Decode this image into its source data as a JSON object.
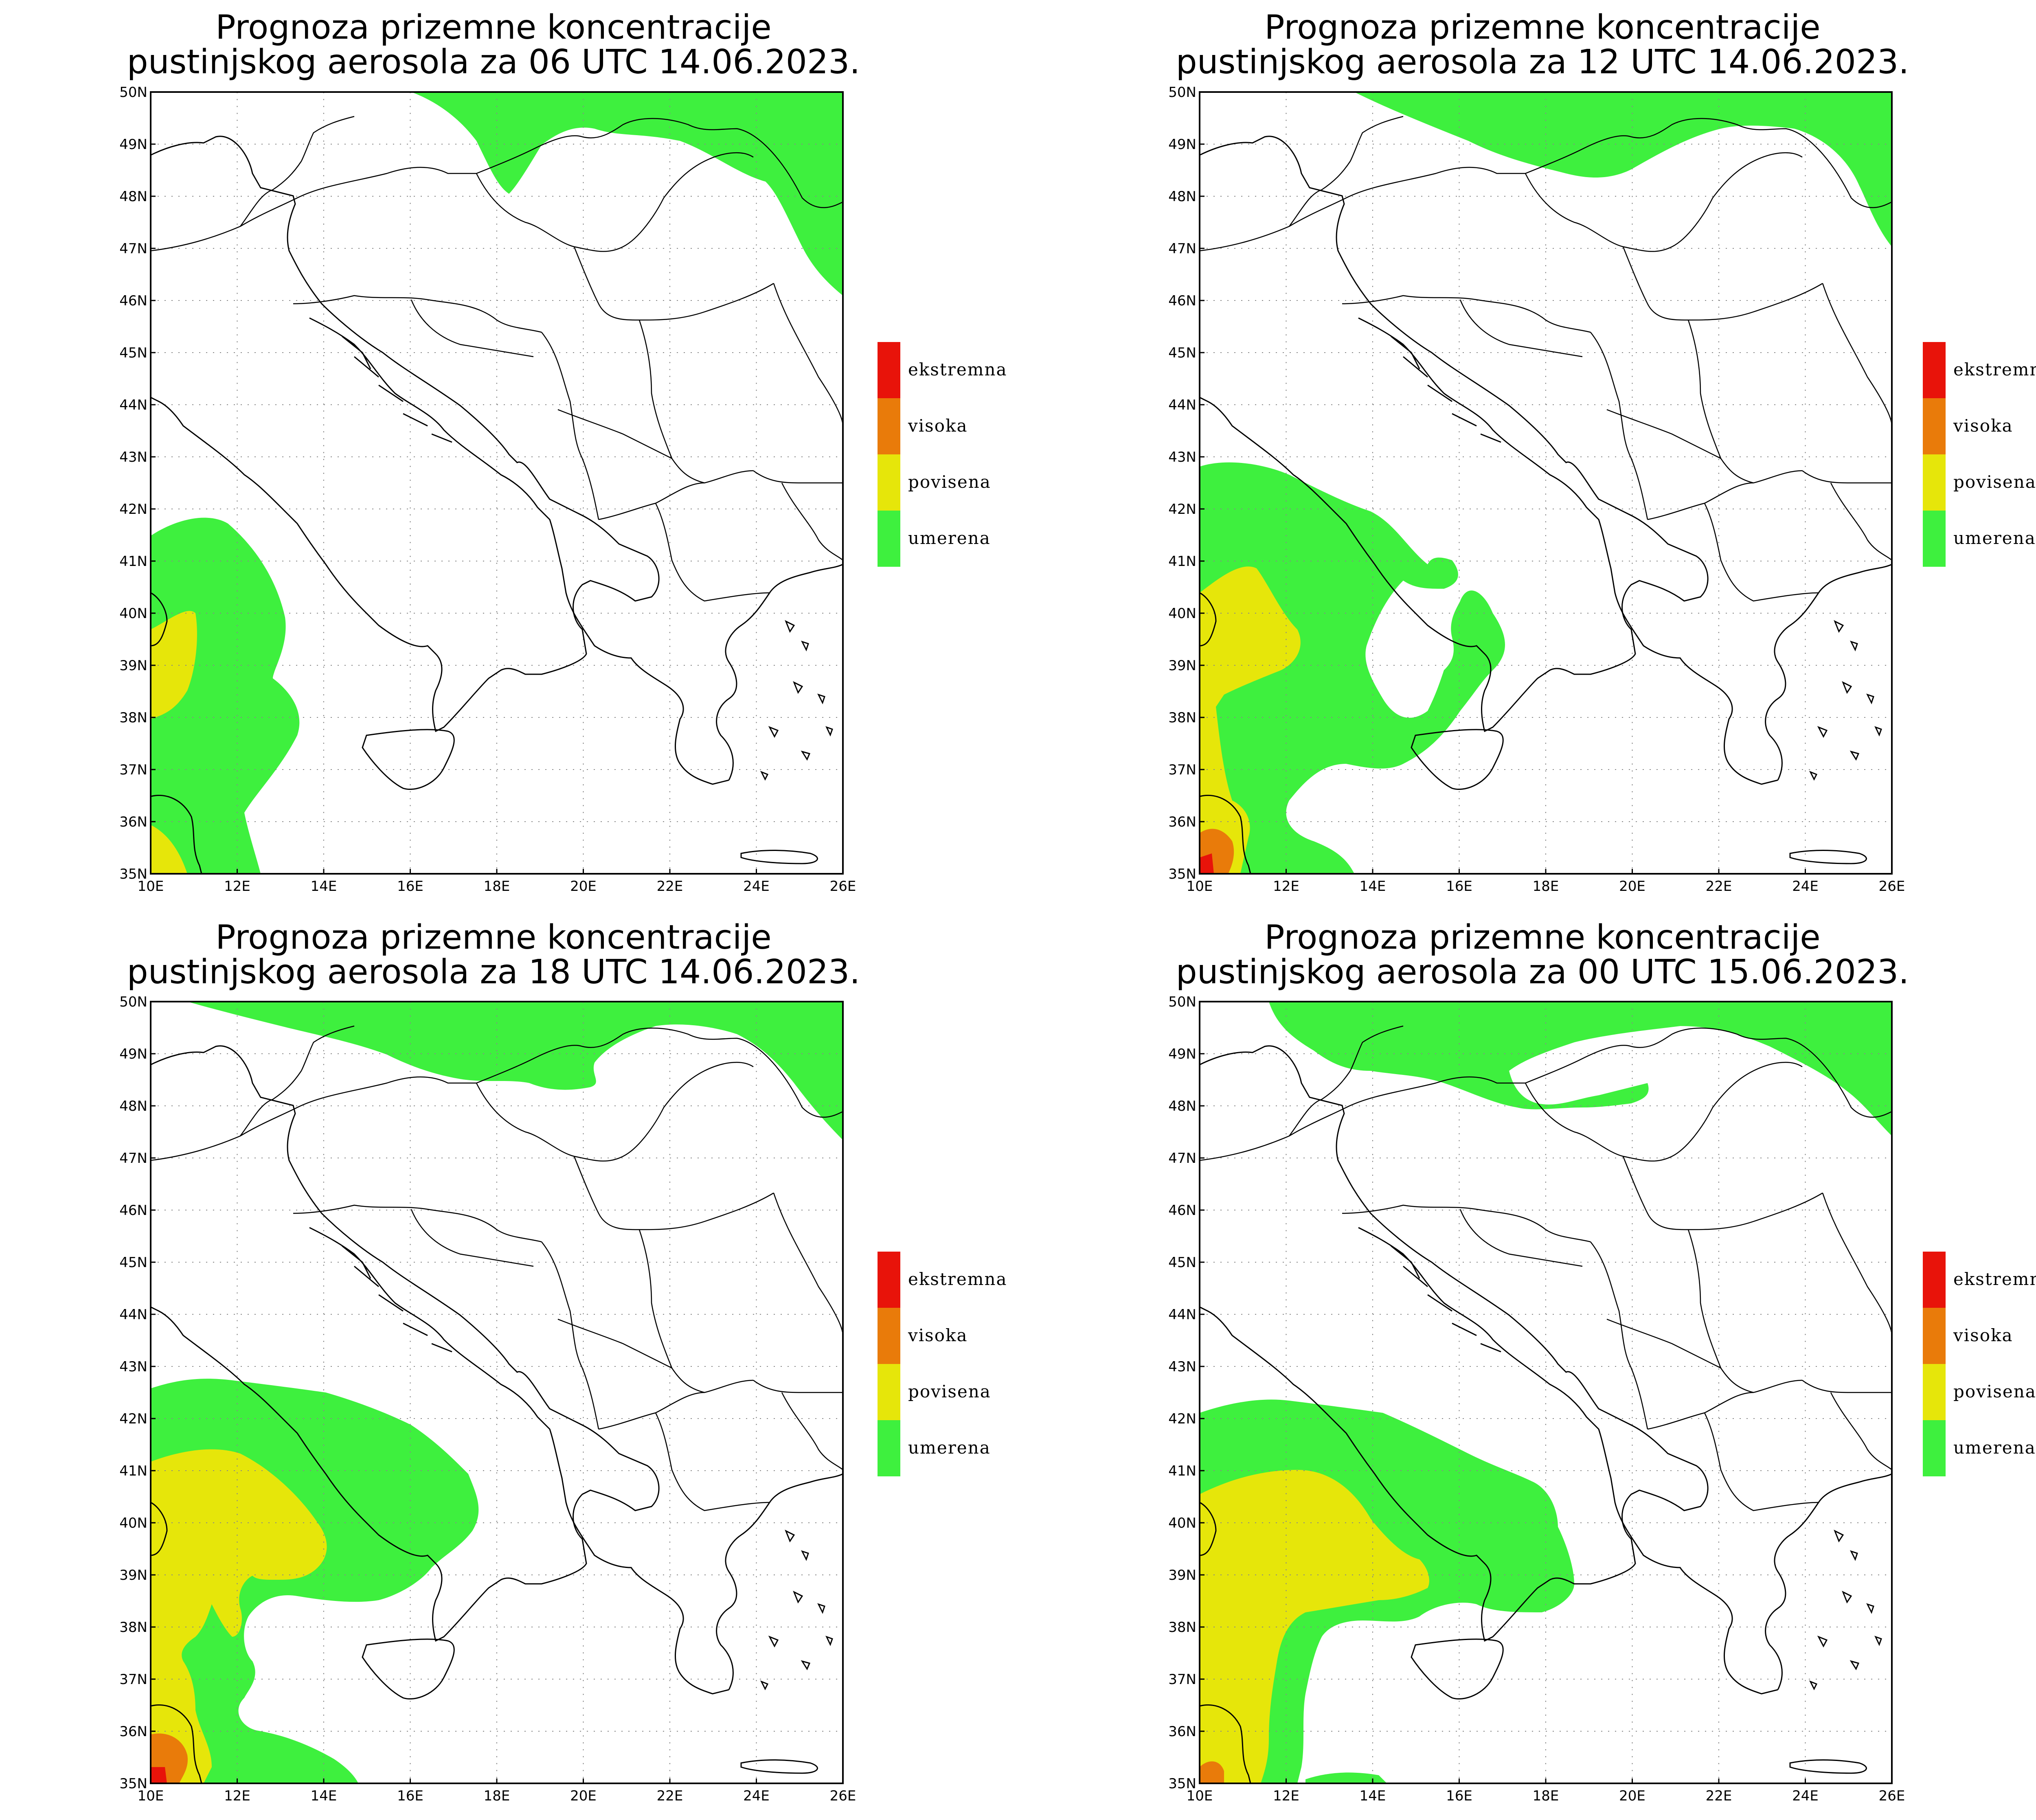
{
  "legend_items": [
    {
      "label": "ekstremna",
      "color": "#E8130A"
    },
    {
      "label": "visoka",
      "color": "#E97B0A"
    },
    {
      "label": "povisena",
      "color": "#E6E60A"
    },
    {
      "label": "umerena",
      "color": "#3EF03E"
    }
  ],
  "axes": {
    "lon_labels": [
      "10E",
      "12E",
      "14E",
      "16E",
      "18E",
      "20E",
      "22E",
      "24E",
      "26E"
    ],
    "lat_labels": [
      "35N",
      "36N",
      "37N",
      "38N",
      "39N",
      "40N",
      "41N",
      "42N",
      "43N",
      "44N",
      "45N",
      "46N",
      "47N",
      "48N",
      "49N",
      "50N"
    ],
    "lon_range": [
      10,
      26
    ],
    "lat_range": [
      35,
      50
    ],
    "grid": "dotted"
  },
  "panels": [
    {
      "title_line1": "Prognoza prizemne koncentracije",
      "title_line2": "pustinjskog aerosola za 06 UTC 14.06.2023."
    },
    {
      "title_line1": "Prognoza prizemne koncentracije",
      "title_line2": "pustinjskog aerosola za 12 UTC 14.06.2023."
    },
    {
      "title_line1": "Prognoza prizemne koncentracije",
      "title_line2": "pustinjskog aerosola za 18 UTC 14.06.2023."
    },
    {
      "title_line1": "Prognoza prizemne koncentracije",
      "title_line2": "pustinjskog aerosola za 00 UTC 15.06.2023."
    }
  ]
}
